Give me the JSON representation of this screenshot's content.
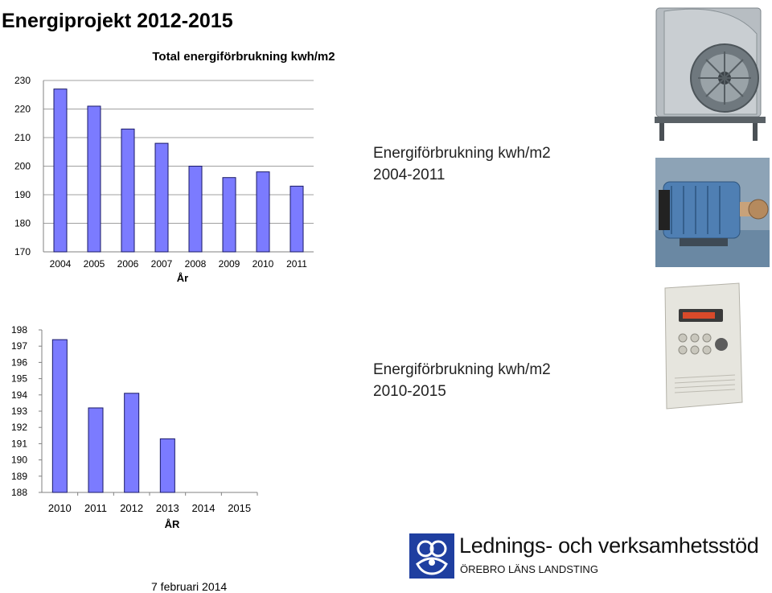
{
  "page": {
    "title": "Energiprojekt 2012-2015",
    "footer_date": "7 februari 2014"
  },
  "captions": {
    "top": {
      "line1": "Energiförbrukning kwh/m2",
      "line2": "2004-2011"
    },
    "bottom": {
      "line1": "Energiförbrukning kwh/m2",
      "line2": "2010-2015"
    }
  },
  "logo": {
    "name": "Lednings- och verksamhetsstöd",
    "org": "ÖREBRO LÄNS LANDSTING"
  },
  "colors": {
    "bar_fill": "#7b7bff",
    "bar_stroke": "#1a1a66"
  },
  "chart_data": [
    {
      "type": "bar",
      "title": "Total energiförbrukning kwh/m2",
      "xlabel": "År",
      "ylabel": "",
      "categories": [
        "2004",
        "2005",
        "2006",
        "2007",
        "2008",
        "2009",
        "2010",
        "2011"
      ],
      "values": [
        227,
        221,
        213,
        208,
        200,
        196,
        198,
        193
      ],
      "ylim": [
        170,
        230
      ],
      "yticks": [
        "170",
        "180",
        "190",
        "200",
        "210",
        "220",
        "230"
      ],
      "grid": true
    },
    {
      "type": "bar",
      "title": "",
      "xlabel": "ÅR",
      "ylabel": "",
      "categories": [
        "2010",
        "2011",
        "2012",
        "2013",
        "2014",
        "2015"
      ],
      "values": [
        197.4,
        193.2,
        194.1,
        191.3,
        null,
        null
      ],
      "ylim": [
        188,
        198
      ],
      "yticks": [
        "188",
        "189",
        "190",
        "191",
        "192",
        "193",
        "194",
        "195",
        "196",
        "197",
        "198"
      ],
      "grid": false
    }
  ]
}
